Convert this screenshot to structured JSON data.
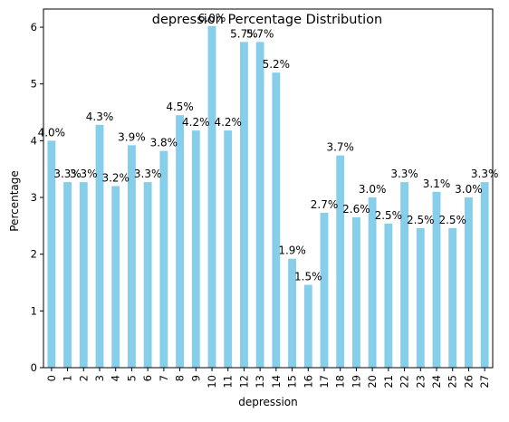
{
  "chart_data": {
    "type": "bar",
    "title": "depression Percentage Distribution",
    "xlabel": "depression",
    "ylabel": "Percentage",
    "categories": [
      "0",
      "1",
      "2",
      "3",
      "4",
      "5",
      "6",
      "7",
      "8",
      "9",
      "10",
      "11",
      "12",
      "13",
      "14",
      "15",
      "16",
      "17",
      "18",
      "19",
      "20",
      "21",
      "22",
      "23",
      "24",
      "25",
      "26",
      "27"
    ],
    "values": [
      4.0,
      3.27,
      3.27,
      4.28,
      3.2,
      3.92,
      3.27,
      3.82,
      4.45,
      4.18,
      6.02,
      4.18,
      5.74,
      5.74,
      5.2,
      1.92,
      1.46,
      2.73,
      3.74,
      2.65,
      3.0,
      2.54,
      3.27,
      2.46,
      3.1,
      2.46,
      3.0,
      3.27
    ],
    "data_labels": [
      "4.0%",
      "3.3%",
      "3.3%",
      "4.3%",
      "3.2%",
      "3.9%",
      "3.3%",
      "3.8%",
      "4.5%",
      "4.2%",
      "6.0%",
      "4.2%",
      "5.7%",
      "5.7%",
      "5.2%",
      "1.9%",
      "1.5%",
      "2.7%",
      "3.7%",
      "2.6%",
      "3.0%",
      "2.5%",
      "3.3%",
      "2.5%",
      "3.1%",
      "2.5%",
      "3.0%",
      "3.3%"
    ],
    "yticks": [
      0,
      1,
      2,
      3,
      4,
      5,
      6
    ],
    "ylim": [
      0,
      6.32
    ],
    "bar_color": "#87ceeb",
    "grid": false,
    "legend": false
  }
}
